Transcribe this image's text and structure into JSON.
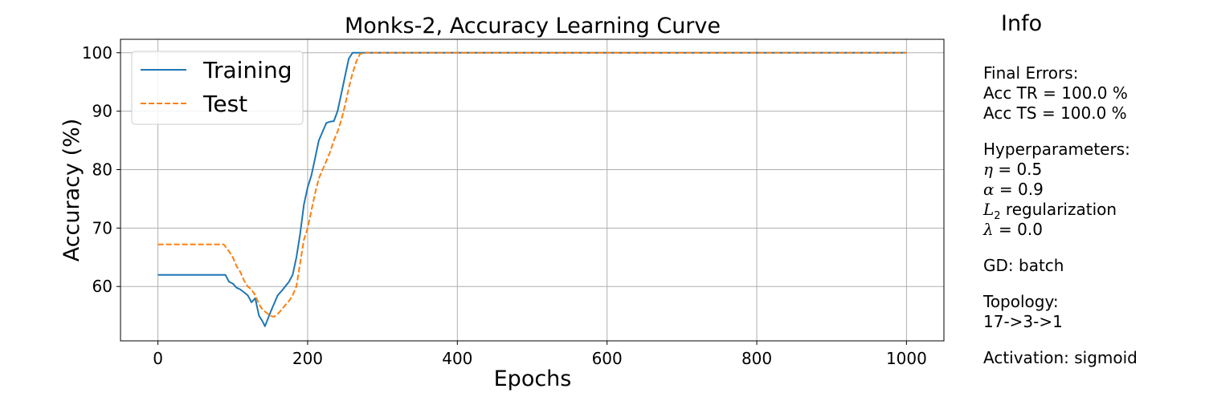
{
  "chart_data": {
    "type": "line",
    "title": "Monks-2, Accuracy Learning Curve",
    "xlabel": "Epochs",
    "ylabel": "Accuracy (%)",
    "xlim": [
      -50,
      1050
    ],
    "ylim": [
      50.7,
      102.3
    ],
    "xticks": [
      0,
      200,
      400,
      600,
      800,
      1000
    ],
    "yticks": [
      60,
      70,
      80,
      90,
      100
    ],
    "grid": true,
    "legend_position": "upper-left",
    "series": [
      {
        "name": "Training",
        "color": "#1f77b4",
        "style": "solid",
        "x": [
          0,
          90,
          95,
          100,
          105,
          110,
          115,
          120,
          125,
          130,
          135,
          140,
          143,
          147,
          150,
          155,
          160,
          165,
          170,
          175,
          180,
          185,
          190,
          195,
          200,
          205,
          210,
          215,
          220,
          225,
          230,
          235,
          240,
          245,
          250,
          255,
          260,
          265,
          270,
          300,
          1000
        ],
        "y": [
          62,
          62,
          60.8,
          60.5,
          59.8,
          59.5,
          59,
          58.5,
          57.3,
          58,
          55,
          54,
          53.2,
          54.5,
          55.5,
          57,
          58.5,
          59.2,
          60,
          60.8,
          62,
          65,
          69,
          74,
          77,
          79,
          82,
          85,
          86.5,
          88,
          88.2,
          88.3,
          90,
          93,
          96,
          99,
          100,
          100,
          100,
          100,
          100
        ]
      },
      {
        "name": "Test",
        "color": "#ff7f0e",
        "style": "dashed",
        "x": [
          0,
          88,
          95,
          100,
          105,
          110,
          115,
          120,
          125,
          130,
          135,
          140,
          145,
          150,
          155,
          160,
          165,
          170,
          175,
          180,
          185,
          190,
          195,
          200,
          205,
          210,
          215,
          220,
          225,
          230,
          235,
          240,
          245,
          250,
          255,
          260,
          265,
          270,
          275,
          300,
          1000
        ],
        "y": [
          67.2,
          67.2,
          66,
          65,
          63.5,
          62.5,
          61,
          60,
          59.5,
          58.5,
          57,
          56,
          55.5,
          55,
          54.8,
          55.3,
          56,
          56.8,
          57.5,
          58.5,
          60,
          64,
          68,
          70,
          73,
          76,
          78.5,
          80,
          81.5,
          83,
          85,
          86.5,
          88.5,
          91,
          94,
          96.5,
          98.5,
          99.8,
          100,
          100,
          100
        ]
      }
    ]
  },
  "info": {
    "title": "Info",
    "final_errors_label": "Final Errors:",
    "acc_tr": "Acc TR = 100.0 %",
    "acc_ts": "Acc TS = 100.0 %",
    "hyper_label": "Hyperparameters:",
    "eta_symbol": "η",
    "eta_value": " = 0.5",
    "alpha_symbol": "α",
    "alpha_value": " = 0.9",
    "l2_symbol": "L",
    "l2_sub": "2",
    "l2_text": " regularization",
    "lambda_symbol": "λ",
    "lambda_value": " = 0.0",
    "gd": "GD: batch",
    "topology_label": "Topology:",
    "topology": "17->3->1",
    "activation": "Activation: sigmoid"
  }
}
